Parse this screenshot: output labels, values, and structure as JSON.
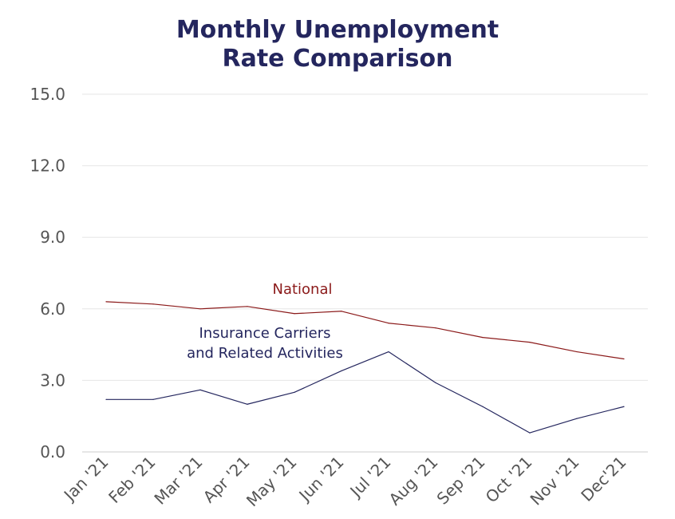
{
  "chart_data": {
    "type": "line",
    "title_lines": [
      "Monthly Unemployment",
      "Rate Comparison"
    ],
    "categories": [
      "Jan '21",
      "Feb '21",
      "Mar '21",
      "Apr '21",
      "May '21",
      "Jun '21",
      "Jul '21",
      "Aug '21",
      "Sep '21",
      "Oct '21",
      "Nov '21",
      "Dec'21"
    ],
    "ylim": [
      0,
      15
    ],
    "yticks": [
      "0.0",
      "3.0",
      "6.0",
      "9.0",
      "12.0",
      "15.0"
    ],
    "grid": true,
    "series": [
      {
        "name": "National",
        "label_lines": [
          "National"
        ],
        "color": "#8b1a1a",
        "values": [
          6.3,
          6.2,
          6.0,
          6.1,
          5.8,
          5.9,
          5.4,
          5.2,
          4.8,
          4.6,
          4.2,
          3.9
        ]
      },
      {
        "name": "Insurance Carriers and Related Activities",
        "label_lines": [
          "Insurance Carriers",
          "and Related Activities"
        ],
        "color": "#24265e",
        "values": [
          2.2,
          2.2,
          2.6,
          2.0,
          2.5,
          3.4,
          4.2,
          2.9,
          1.9,
          0.8,
          1.4,
          1.9
        ]
      }
    ]
  }
}
